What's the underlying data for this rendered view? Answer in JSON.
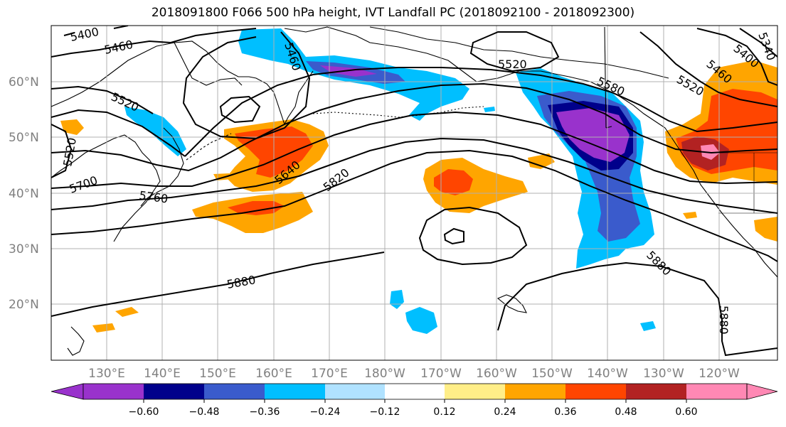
{
  "title": "2018091800 F066 500 hPa height, IVT Landfall PC (2018092100 - 2018092300)",
  "lat_labels": [
    "60°N",
    "50°N",
    "40°N",
    "30°N",
    "20°N"
  ],
  "lon_labels": [
    "130°E",
    "140°E",
    "150°E",
    "160°E",
    "170°E",
    "180°W",
    "170°W",
    "160°W",
    "150°W",
    "140°W",
    "130°W",
    "120°W"
  ],
  "contour_labels": [
    "5400",
    "5460",
    "5460",
    "5520",
    "5520",
    "5520",
    "5580",
    "5640",
    "5700",
    "5760",
    "5820",
    "5880",
    "5880",
    "5880",
    "5400",
    "5460",
    "5340",
    "5520"
  ],
  "colorbar": {
    "tick_labels": [
      "−0.60",
      "−0.48",
      "−0.36",
      "−0.24",
      "−0.12",
      "0.12",
      "0.24",
      "0.36",
      "0.48",
      "0.60"
    ],
    "colors": [
      "#9932cc",
      "#00008b",
      "#3a5bcc",
      "#00bfff",
      "#b0e2ff",
      "#ffffff",
      "#ffee88",
      "#ffa500",
      "#ff4500",
      "#b22222",
      "#ff88b4"
    ]
  },
  "colors": {
    "contour": "#000000",
    "grid": "#b0b0b0",
    "label_gray": "#808080"
  }
}
